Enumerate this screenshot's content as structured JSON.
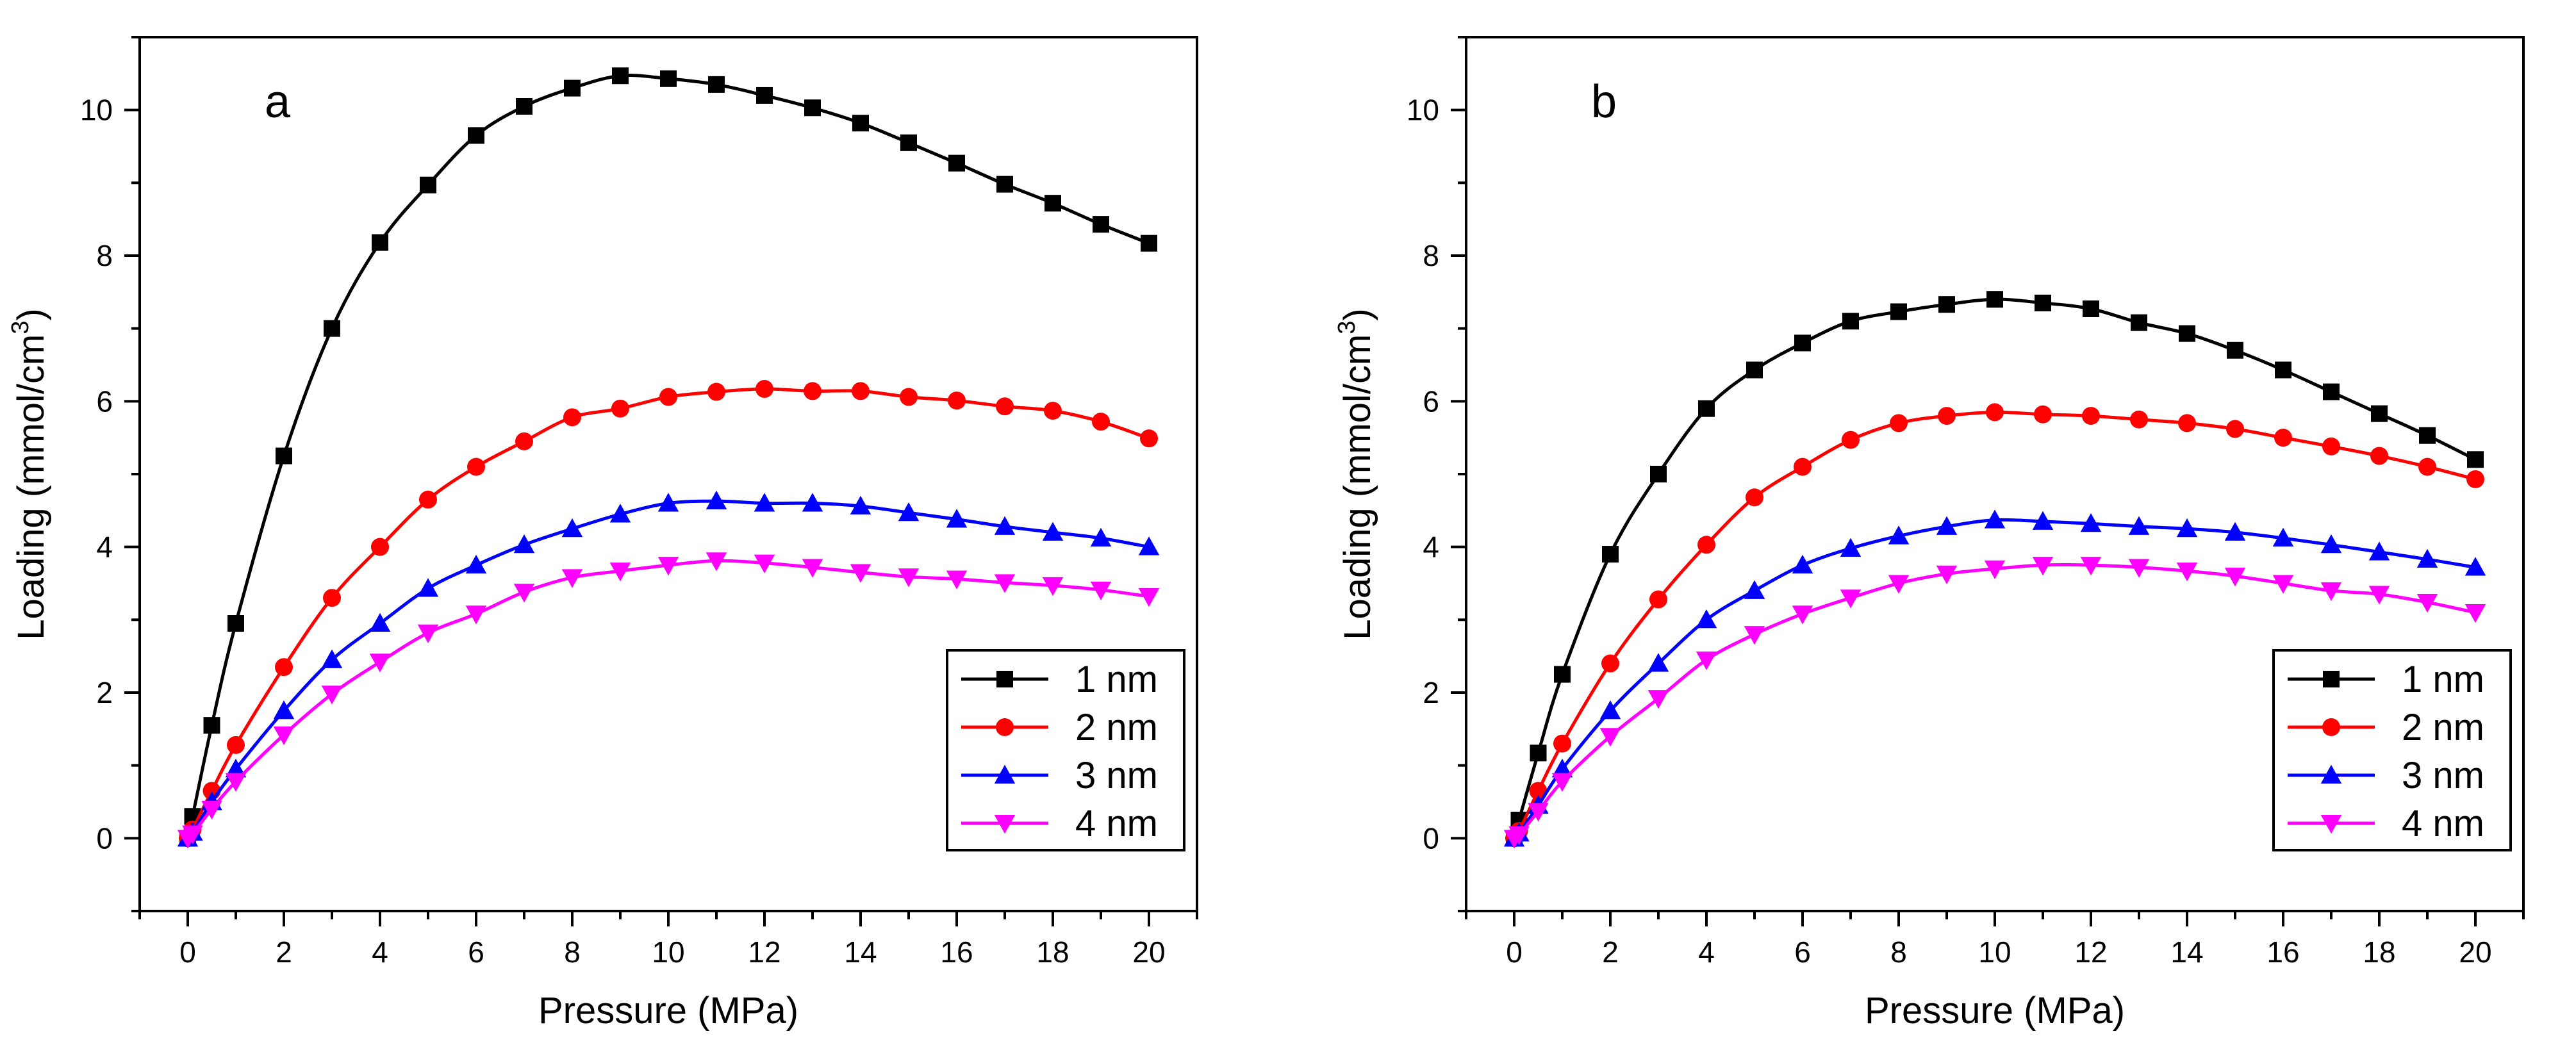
{
  "chart_data": [
    {
      "type": "line",
      "panel_label": "a",
      "xlabel": "Pressure (MPa)",
      "ylabel": "Loading (mmol/cm",
      "ylabel_sup": "3",
      "ylabel_close": ")",
      "xlim": [
        -1,
        21
      ],
      "ylim": [
        -1,
        11
      ],
      "xticks": [
        0,
        2,
        4,
        6,
        8,
        10,
        12,
        14,
        16,
        18,
        20
      ],
      "yticks": [
        0,
        2,
        4,
        6,
        8,
        10
      ],
      "legend_position": "bottom-right",
      "x": [
        0,
        0.1,
        0.5,
        1,
        2,
        3,
        4,
        5,
        6,
        7,
        8,
        9,
        10,
        11,
        12,
        13,
        14,
        15,
        16,
        17,
        18,
        19,
        20
      ],
      "series": [
        {
          "name": "1 nm",
          "color": "#000000",
          "marker": "square",
          "values": [
            0,
            0.3,
            1.55,
            2.95,
            5.25,
            7.0,
            8.18,
            8.97,
            9.65,
            10.05,
            10.3,
            10.47,
            10.43,
            10.35,
            10.2,
            10.03,
            9.82,
            9.55,
            9.27,
            8.98,
            8.72,
            8.43,
            8.17
          ]
        },
        {
          "name": "2 nm",
          "color": "#ff0000",
          "marker": "circle",
          "values": [
            0,
            0.12,
            0.65,
            1.28,
            2.35,
            3.3,
            4.0,
            4.65,
            5.1,
            5.45,
            5.78,
            5.9,
            6.06,
            6.13,
            6.17,
            6.14,
            6.14,
            6.06,
            6.01,
            5.93,
            5.87,
            5.72,
            5.49
          ]
        },
        {
          "name": "3 nm",
          "color": "#0000ff",
          "marker": "triangle-up",
          "values": [
            0,
            0.08,
            0.5,
            0.95,
            1.75,
            2.45,
            2.95,
            3.43,
            3.75,
            4.03,
            4.25,
            4.45,
            4.6,
            4.63,
            4.6,
            4.6,
            4.56,
            4.47,
            4.38,
            4.28,
            4.2,
            4.12,
            4.0
          ]
        },
        {
          "name": "4 nm",
          "color": "#ff00ff",
          "marker": "triangle-down",
          "values": [
            0,
            0.06,
            0.4,
            0.78,
            1.42,
            1.98,
            2.42,
            2.82,
            3.08,
            3.38,
            3.58,
            3.67,
            3.75,
            3.81,
            3.78,
            3.72,
            3.65,
            3.59,
            3.56,
            3.51,
            3.47,
            3.41,
            3.32
          ]
        }
      ]
    },
    {
      "type": "line",
      "panel_label": "b",
      "xlabel": "Pressure (MPa)",
      "ylabel": "Loading (mmol/cm",
      "ylabel_sup": "3",
      "ylabel_close": ")",
      "xlim": [
        -1,
        21
      ],
      "ylim": [
        -1,
        11
      ],
      "xticks": [
        0,
        2,
        4,
        6,
        8,
        10,
        12,
        14,
        16,
        18,
        20
      ],
      "yticks": [
        0,
        2,
        4,
        6,
        8,
        10
      ],
      "legend_position": "bottom-right",
      "x": [
        0,
        0.1,
        0.5,
        1,
        2,
        3,
        4,
        5,
        6,
        7,
        8,
        9,
        10,
        11,
        12,
        13,
        14,
        15,
        16,
        17,
        18,
        19,
        20
      ],
      "series": [
        {
          "name": "1 nm",
          "color": "#000000",
          "marker": "square",
          "values": [
            0,
            0.25,
            1.17,
            2.25,
            3.9,
            5.0,
            5.9,
            6.43,
            6.8,
            7.1,
            7.23,
            7.33,
            7.4,
            7.35,
            7.27,
            7.08,
            6.93,
            6.7,
            6.43,
            6.13,
            5.83,
            5.53,
            5.2
          ]
        },
        {
          "name": "2 nm",
          "color": "#ff0000",
          "marker": "circle",
          "values": [
            0,
            0.1,
            0.65,
            1.3,
            2.4,
            3.28,
            4.03,
            4.68,
            5.1,
            5.47,
            5.7,
            5.8,
            5.85,
            5.82,
            5.8,
            5.75,
            5.7,
            5.62,
            5.5,
            5.38,
            5.25,
            5.1,
            4.93
          ]
        },
        {
          "name": "3 nm",
          "color": "#0000ff",
          "marker": "triangle-up",
          "values": [
            0,
            0.07,
            0.45,
            0.95,
            1.75,
            2.4,
            3.0,
            3.4,
            3.75,
            3.98,
            4.15,
            4.28,
            4.37,
            4.35,
            4.32,
            4.28,
            4.25,
            4.2,
            4.12,
            4.03,
            3.93,
            3.83,
            3.72
          ]
        },
        {
          "name": "4 nm",
          "color": "#ff00ff",
          "marker": "triangle-down",
          "values": [
            0,
            0.05,
            0.37,
            0.78,
            1.4,
            1.92,
            2.45,
            2.8,
            3.08,
            3.3,
            3.5,
            3.63,
            3.7,
            3.75,
            3.75,
            3.72,
            3.67,
            3.6,
            3.5,
            3.4,
            3.35,
            3.24,
            3.1
          ]
        }
      ]
    }
  ]
}
